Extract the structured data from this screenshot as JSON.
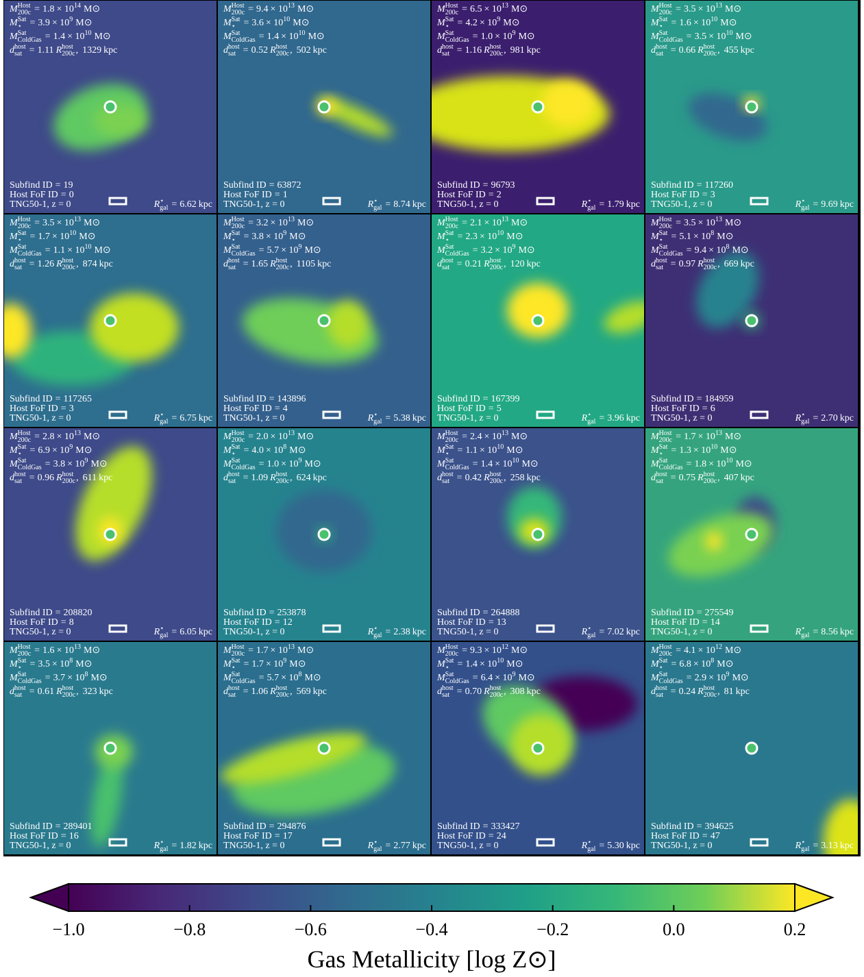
{
  "labels": {
    "M": "M",
    "Host": "Host",
    "sub_200c": "200c",
    "Sat": "Sat",
    "star": "⋆",
    "ColdGas": "ColdGas",
    "d": "d",
    "host": "host",
    "sat": "sat",
    "R": "R",
    "gal": "gal",
    "eq": "=",
    "times10": "× 10",
    "Msun": "M⊙",
    "comma": ",",
    "kpc": "kpc",
    "subfind": "Subfind ID",
    "fof": "Host FoF ID",
    "sim": "TNG50-1, z = 0"
  },
  "panels": [
    {
      "host_mass": [
        "1.8",
        "14"
      ],
      "star_mass": [
        "3.9",
        "9"
      ],
      "cold_mass": [
        "1.4",
        "10"
      ],
      "d_r": "1.11",
      "d_kpc": "1329",
      "subfind": "19",
      "fof": "0",
      "rgal": "6.62"
    },
    {
      "host_mass": [
        "9.4",
        "13"
      ],
      "star_mass": [
        "3.6",
        "10"
      ],
      "cold_mass": [
        "1.4",
        "10"
      ],
      "d_r": "0.52",
      "d_kpc": "502",
      "subfind": "63872",
      "fof": "1",
      "rgal": "8.74"
    },
    {
      "host_mass": [
        "6.5",
        "13"
      ],
      "star_mass": [
        "4.2",
        "9"
      ],
      "cold_mass": [
        "1.0",
        "9"
      ],
      "d_r": "1.16",
      "d_kpc": "981",
      "subfind": "96793",
      "fof": "2",
      "rgal": "1.79"
    },
    {
      "host_mass": [
        "3.5",
        "13"
      ],
      "star_mass": [
        "1.6",
        "10"
      ],
      "cold_mass": [
        "3.5",
        "10"
      ],
      "d_r": "0.66",
      "d_kpc": "455",
      "subfind": "117260",
      "fof": "3",
      "rgal": "9.69"
    },
    {
      "host_mass": [
        "3.5",
        "13"
      ],
      "star_mass": [
        "1.7",
        "10"
      ],
      "cold_mass": [
        "1.1",
        "10"
      ],
      "d_r": "1.26",
      "d_kpc": "874",
      "subfind": "117265",
      "fof": "3",
      "rgal": "6.75"
    },
    {
      "host_mass": [
        "3.2",
        "13"
      ],
      "star_mass": [
        "3.8",
        "9"
      ],
      "cold_mass": [
        "5.7",
        "9"
      ],
      "d_r": "1.65",
      "d_kpc": "1105",
      "subfind": "143896",
      "fof": "4",
      "rgal": "5.38"
    },
    {
      "host_mass": [
        "2.1",
        "13"
      ],
      "star_mass": [
        "2.3",
        "10"
      ],
      "cold_mass": [
        "3.2",
        "9"
      ],
      "d_r": "0.21",
      "d_kpc": "120",
      "subfind": "167399",
      "fof": "5",
      "rgal": "3.96"
    },
    {
      "host_mass": [
        "3.5",
        "13"
      ],
      "star_mass": [
        "5.1",
        "8"
      ],
      "cold_mass": [
        "9.4",
        "8"
      ],
      "d_r": "0.97",
      "d_kpc": "669",
      "subfind": "184959",
      "fof": "6",
      "rgal": "2.70"
    },
    {
      "host_mass": [
        "2.8",
        "13"
      ],
      "star_mass": [
        "6.9",
        "9"
      ],
      "cold_mass": [
        "3.8",
        "9"
      ],
      "d_r": "0.96",
      "d_kpc": "611",
      "subfind": "208820",
      "fof": "8",
      "rgal": "6.05"
    },
    {
      "host_mass": [
        "2.0",
        "13"
      ],
      "star_mass": [
        "4.0",
        "8"
      ],
      "cold_mass": [
        "1.0",
        "9"
      ],
      "d_r": "1.09",
      "d_kpc": "624",
      "subfind": "253878",
      "fof": "12",
      "rgal": "2.38"
    },
    {
      "host_mass": [
        "2.4",
        "13"
      ],
      "star_mass": [
        "1.1",
        "10"
      ],
      "cold_mass": [
        "1.4",
        "10"
      ],
      "d_r": "0.42",
      "d_kpc": "258",
      "subfind": "264888",
      "fof": "13",
      "rgal": "7.02"
    },
    {
      "host_mass": [
        "1.7",
        "13"
      ],
      "star_mass": [
        "1.3",
        "10"
      ],
      "cold_mass": [
        "1.8",
        "10"
      ],
      "d_r": "0.75",
      "d_kpc": "407",
      "subfind": "275549",
      "fof": "14",
      "rgal": "8.56"
    },
    {
      "host_mass": [
        "1.6",
        "13"
      ],
      "star_mass": [
        "3.5",
        "8"
      ],
      "cold_mass": [
        "3.7",
        "8"
      ],
      "d_r": "0.61",
      "d_kpc": "323",
      "subfind": "289401",
      "fof": "16",
      "rgal": "1.82"
    },
    {
      "host_mass": [
        "1.7",
        "13"
      ],
      "star_mass": [
        "1.7",
        "9"
      ],
      "cold_mass": [
        "5.7",
        "8"
      ],
      "d_r": "1.06",
      "d_kpc": "569",
      "subfind": "294876",
      "fof": "17",
      "rgal": "2.77"
    },
    {
      "host_mass": [
        "9.3",
        "12"
      ],
      "star_mass": [
        "1.4",
        "10"
      ],
      "cold_mass": [
        "6.4",
        "9"
      ],
      "d_r": "0.70",
      "d_kpc": "308",
      "subfind": "333427",
      "fof": "24",
      "rgal": "5.30"
    },
    {
      "host_mass": [
        "4.1",
        "12"
      ],
      "star_mass": [
        "6.8",
        "8"
      ],
      "cold_mass": [
        "2.9",
        "9"
      ],
      "d_r": "0.24",
      "d_kpc": "81",
      "subfind": "394625",
      "fof": "47",
      "rgal": "3.13"
    }
  ],
  "colorbar": {
    "label": "Gas Metallicity [log Z⊙]",
    "lim": [
      -1.0,
      0.2
    ],
    "ticks": [
      {
        "value": -1.0,
        "label": "−1.0"
      },
      {
        "value": -0.8,
        "label": "−0.8"
      },
      {
        "value": -0.6,
        "label": "−0.6"
      },
      {
        "value": -0.4,
        "label": "−0.4"
      },
      {
        "value": -0.2,
        "label": "−0.2"
      },
      {
        "value": 0.0,
        "label": "0.0"
      },
      0.2
    ]
  }
}
